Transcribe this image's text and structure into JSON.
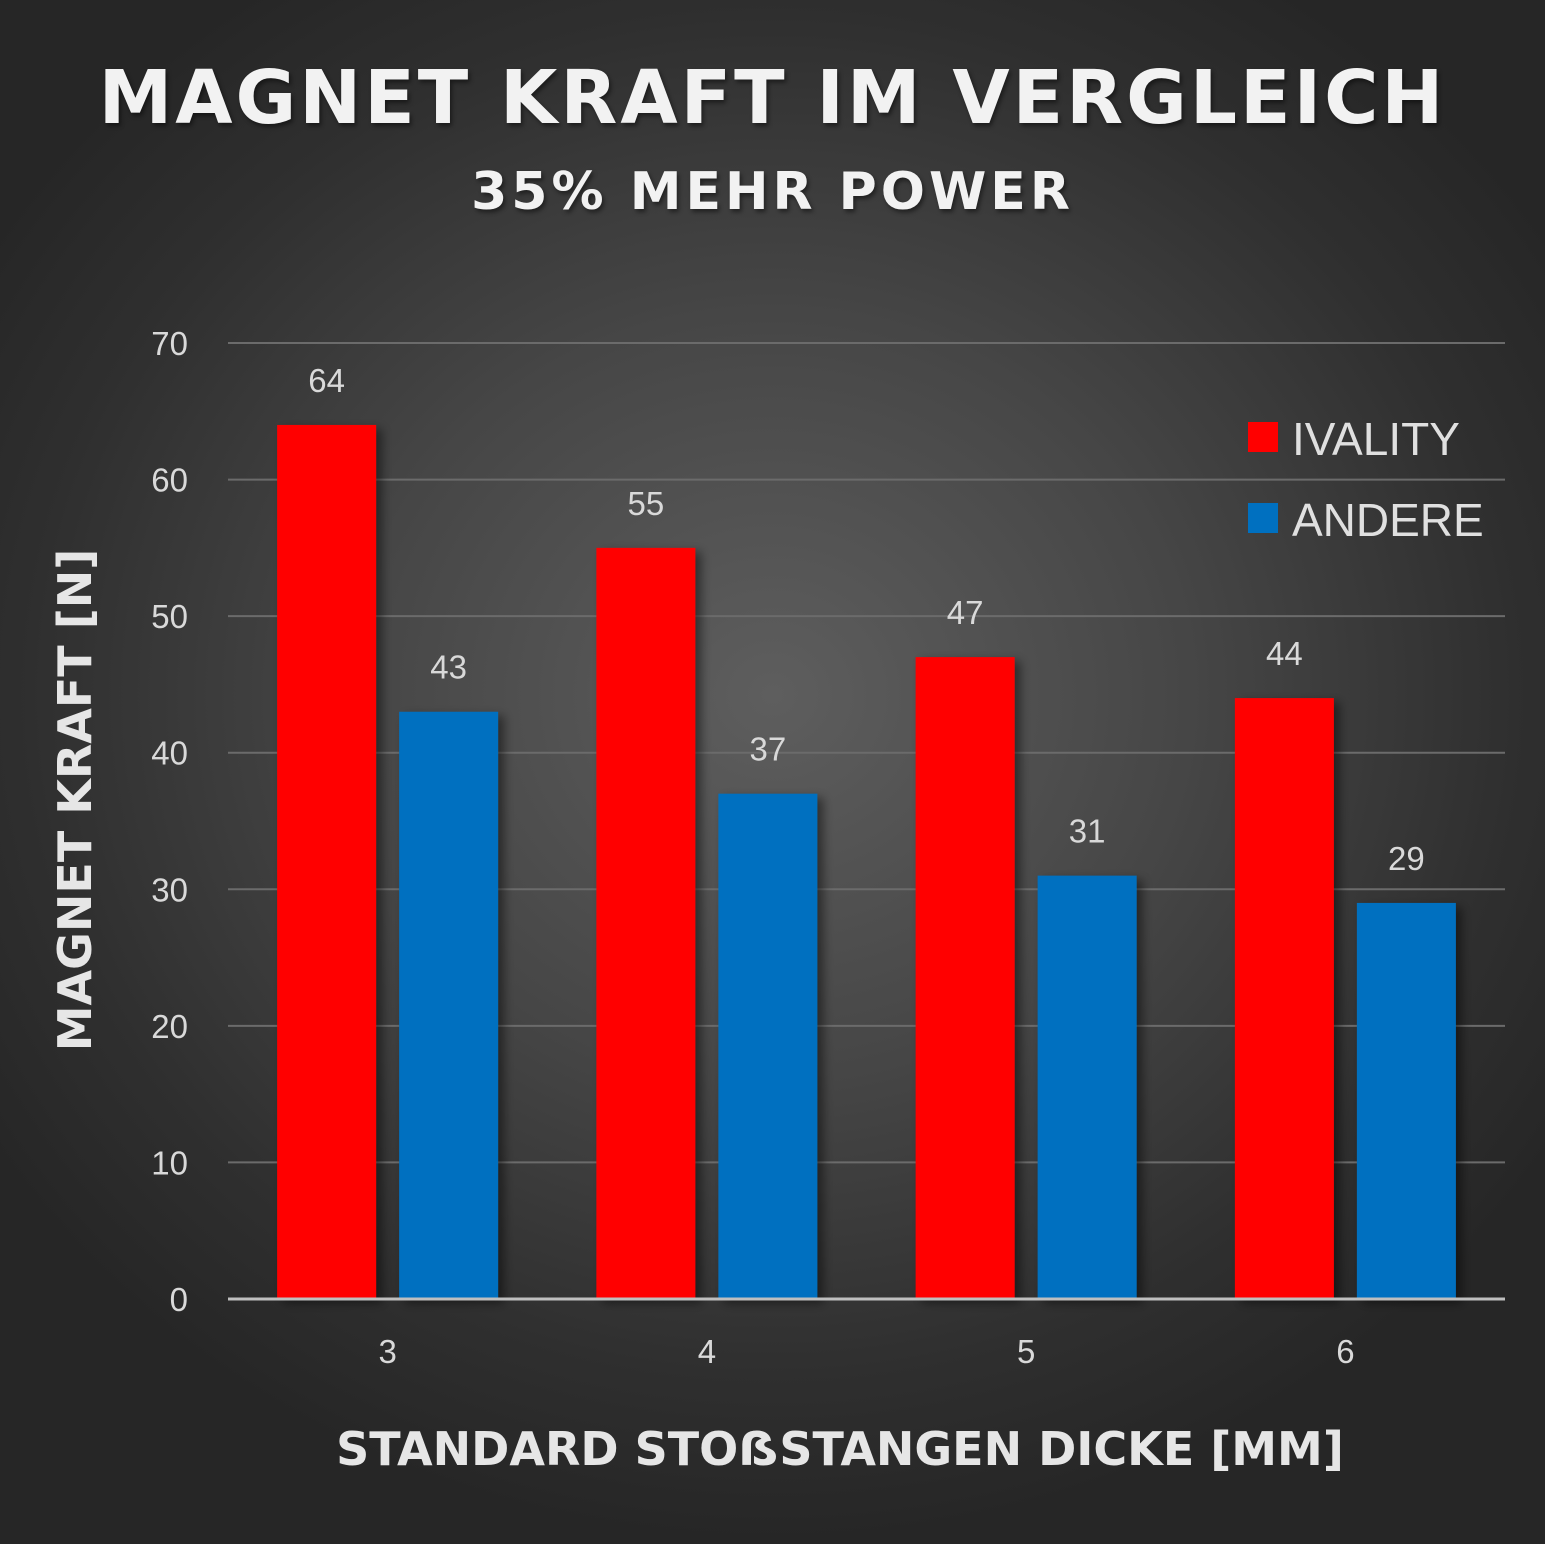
{
  "chart_data": {
    "type": "bar",
    "title": "MAGNET KRAFT IM VERGLEICH",
    "subtitle": "35% MEHR POWER",
    "xlabel": "STANDARD STOẞSTANGEN DICKE [MM]",
    "ylabel": "MAGNET KRAFT [N]",
    "categories": [
      "3",
      "4",
      "5",
      "6"
    ],
    "series": [
      {
        "name": "IVALITY",
        "color": "#ff0000",
        "values": [
          64,
          55,
          47,
          44
        ]
      },
      {
        "name": "ANDERE",
        "color": "#0070c0",
        "values": [
          43,
          37,
          31,
          29
        ]
      }
    ],
    "ylim": [
      0,
      70
    ],
    "yticks": [
      "0",
      "10",
      "20",
      "30",
      "40",
      "50",
      "60",
      "70"
    ],
    "grid": true,
    "legend_position": "top-right"
  }
}
